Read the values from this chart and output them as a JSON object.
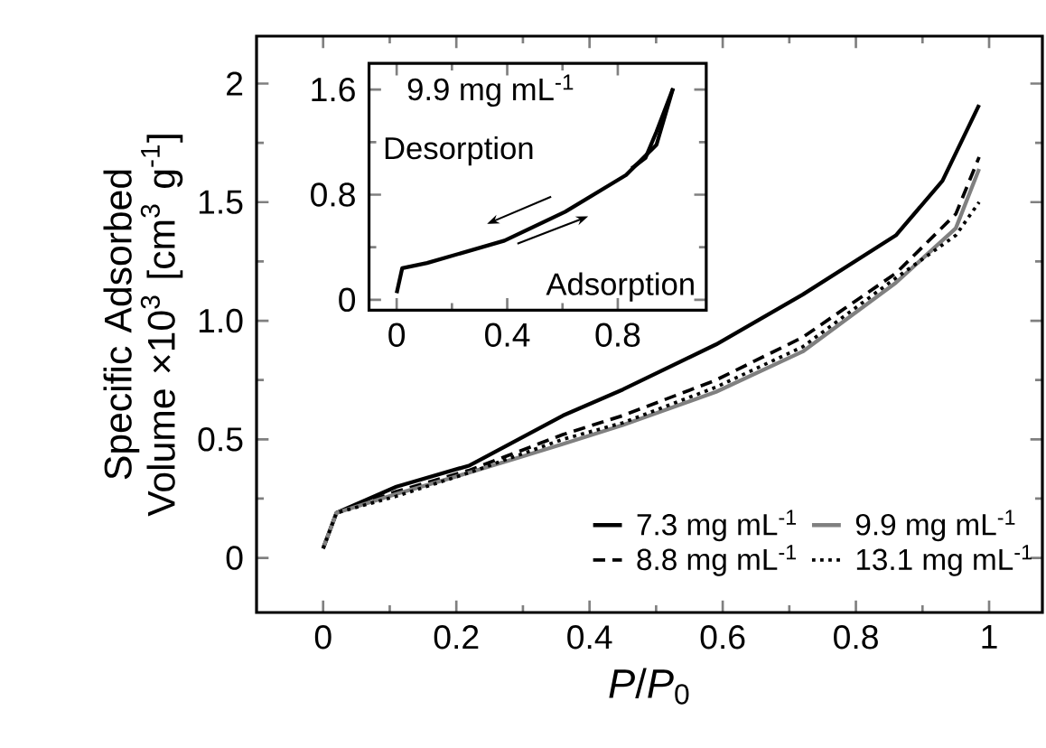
{
  "chart_data": [
    {
      "type": "line",
      "xlabel": "*P*/*P*$_{0}$",
      "ylabel": "Specific Adsorbed Volume ×10$^{3}$ [cm$^{3}$ g$^{-1}$]",
      "xlim": [
        -0.1,
        1.08
      ],
      "ylim": [
        -0.23,
        2.2
      ],
      "xticks": [
        0,
        0.2,
        0.4,
        0.6,
        0.8,
        1
      ],
      "yticks": [
        0,
        0.5,
        {
          "value": 1,
          "label": "1.0"
        },
        1.5,
        2
      ],
      "legend": "bottom right",
      "series": [
        {
          "name": "7.3 mg mL$^{-1}$",
          "color": "#000000",
          "line_style": "solid",
          "x": [
            0,
            0.02,
            0.11,
            0.22,
            0.36,
            0.45,
            0.59,
            0.72,
            0.86,
            0.93,
            0.985
          ],
          "values": [
            0.04,
            0.19,
            0.3,
            0.39,
            0.6,
            0.71,
            0.9,
            1.11,
            1.36,
            1.59,
            1.91
          ]
        },
        {
          "name": "8.8 mg mL$^{-1}$",
          "color": "#000000",
          "line_style": "dashed",
          "x": [
            0,
            0.02,
            0.11,
            0.22,
            0.36,
            0.45,
            0.59,
            0.72,
            0.86,
            0.95,
            0.985
          ],
          "values": [
            0.04,
            0.19,
            0.28,
            0.37,
            0.52,
            0.6,
            0.75,
            0.93,
            1.2,
            1.45,
            1.69
          ]
        },
        {
          "name": "9.9 mg mL$^{-1}$",
          "color": "#808080",
          "line_style": "solid",
          "x": [
            0,
            0.02,
            0.11,
            0.22,
            0.36,
            0.45,
            0.59,
            0.72,
            0.86,
            0.95,
            0.985
          ],
          "values": [
            0.04,
            0.19,
            0.27,
            0.36,
            0.48,
            0.56,
            0.7,
            0.87,
            1.16,
            1.39,
            1.64
          ]
        },
        {
          "name": "13.1 mg mL$^{-1}$",
          "color": "#000000",
          "line_style": "dotted",
          "x": [
            0,
            0.02,
            0.11,
            0.22,
            0.36,
            0.45,
            0.59,
            0.72,
            0.86,
            0.95,
            0.985
          ],
          "values": [
            0.04,
            0.19,
            0.26,
            0.36,
            0.5,
            0.57,
            0.72,
            0.89,
            1.18,
            1.36,
            1.5
          ]
        }
      ]
    },
    {
      "type": "line",
      "xlim": [
        -0.1,
        1.12
      ],
      "ylim": [
        -0.08,
        1.8
      ],
      "xticks": [
        0,
        0.4,
        0.8
      ],
      "yticks": [
        0,
        0.8,
        1.6
      ],
      "annotations": [
        "9.9 mg mL$^{-1}$",
        "Desorption",
        "Adsorption"
      ],
      "series": [
        {
          "color": "#000000",
          "line_style": "solid",
          "x": [
            0,
            0.02,
            0.11,
            0.39,
            0.61,
            0.83,
            0.94,
            1.0
          ],
          "values": [
            0.05,
            0.24,
            0.28,
            0.45,
            0.67,
            0.95,
            1.18,
            1.61
          ]
        },
        {
          "color": "#000000",
          "line_style": "solid",
          "x": [
            1.0,
            0.94,
            0.9,
            0.85
          ],
          "values": [
            1.61,
            1.28,
            1.08,
            1.0
          ]
        }
      ]
    }
  ]
}
